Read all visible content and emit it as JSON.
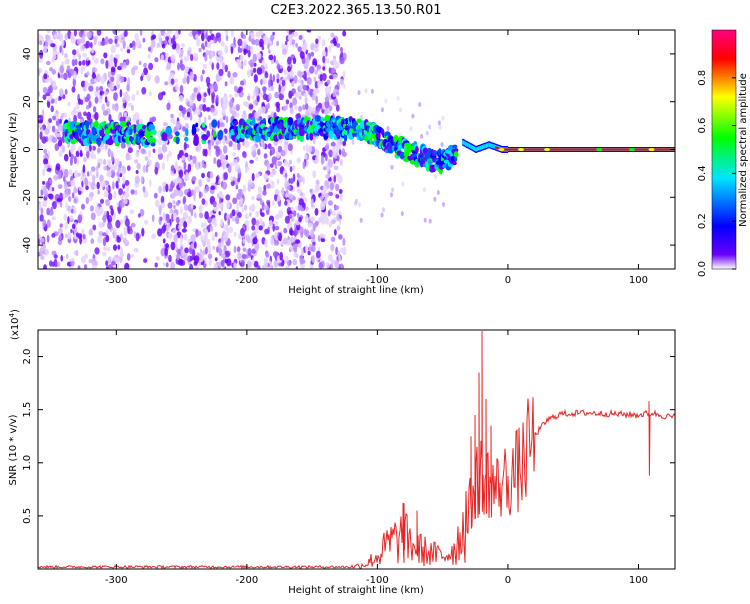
{
  "title": "C2E3.2022.365.13.50.R01",
  "chart_data": [
    {
      "type": "heatmap",
      "xlabel": "Height of straight line (km)",
      "ylabel": "Frequency (Hz)",
      "xlim": [
        -360,
        128
      ],
      "ylim": [
        -50,
        50
      ],
      "x_ticks": [
        -300,
        -200,
        -100,
        0,
        100
      ],
      "y_ticks": [
        -40,
        -20,
        0,
        20,
        40
      ],
      "colorbar": {
        "label": "Normalized spectral amplitude",
        "range": [
          0,
          1
        ],
        "ticks": [
          "0.0",
          "0.2",
          "0.4",
          "0.6",
          "0.8"
        ],
        "colors": [
          "#ffffff",
          "#6a00ff",
          "#0000ff",
          "#00e5ff",
          "#00ff00",
          "#ffff00",
          "#ff0000",
          "#ff0080"
        ]
      },
      "band_trace": {
        "x": [
          -340,
          -300,
          -270,
          -200,
          -150,
          -125,
          -110,
          -100,
          -90,
          -80,
          -70,
          -60,
          -50,
          -40,
          -35,
          -25,
          -15,
          -5,
          0,
          20,
          60,
          100,
          128
        ],
        "y": [
          7,
          7,
          6,
          8,
          9,
          9,
          8,
          5,
          2,
          0,
          -2,
          -5,
          -5,
          -2,
          3,
          0,
          2,
          0,
          0,
          0,
          0,
          0,
          0
        ]
      },
      "noise_region_x": [
        -360,
        -125
      ]
    },
    {
      "type": "line",
      "xlabel": "Height of straight line (km)",
      "ylabel": "SNR (10 * v/v)",
      "exponent_label": "(x10",
      "exponent_power": "4",
      "exponent_close": ")",
      "xlim": [
        -360,
        128
      ],
      "ylim": [
        0,
        2.25
      ],
      "x_ticks": [
        -300,
        -200,
        -100,
        0,
        100
      ],
      "y_ticks": [
        0.5,
        1.0,
        1.5,
        2.0
      ],
      "series": [
        {
          "color": "#e82424",
          "envelope_x": [
            -360,
            -120,
            -110,
            -100,
            -90,
            -80,
            -70,
            -60,
            -50,
            -40,
            -30,
            -25,
            -20,
            -15,
            -10,
            0,
            10,
            20,
            30,
            40,
            60,
            80,
            100,
            110,
            120,
            128
          ],
          "envelope_y": [
            0.02,
            0.02,
            0.04,
            0.12,
            0.25,
            0.3,
            0.2,
            0.15,
            0.12,
            0.2,
            0.55,
            0.8,
            0.9,
            0.85,
            0.75,
            0.85,
            0.95,
            1.25,
            1.4,
            1.46,
            1.47,
            1.46,
            1.45,
            1.47,
            1.44,
            1.43
          ],
          "spikes": [
            {
              "x": -80,
              "y": 0.62
            },
            {
              "x": -70,
              "y": 0.55
            },
            {
              "x": -28,
              "y": 1.25
            },
            {
              "x": -25,
              "y": 1.45
            },
            {
              "x": -22,
              "y": 1.85
            },
            {
              "x": -20,
              "y": 2.24
            },
            {
              "x": -17,
              "y": 1.6
            },
            {
              "x": -13,
              "y": 1.35
            },
            {
              "x": 108,
              "y": 1.58
            }
          ]
        }
      ]
    }
  ]
}
